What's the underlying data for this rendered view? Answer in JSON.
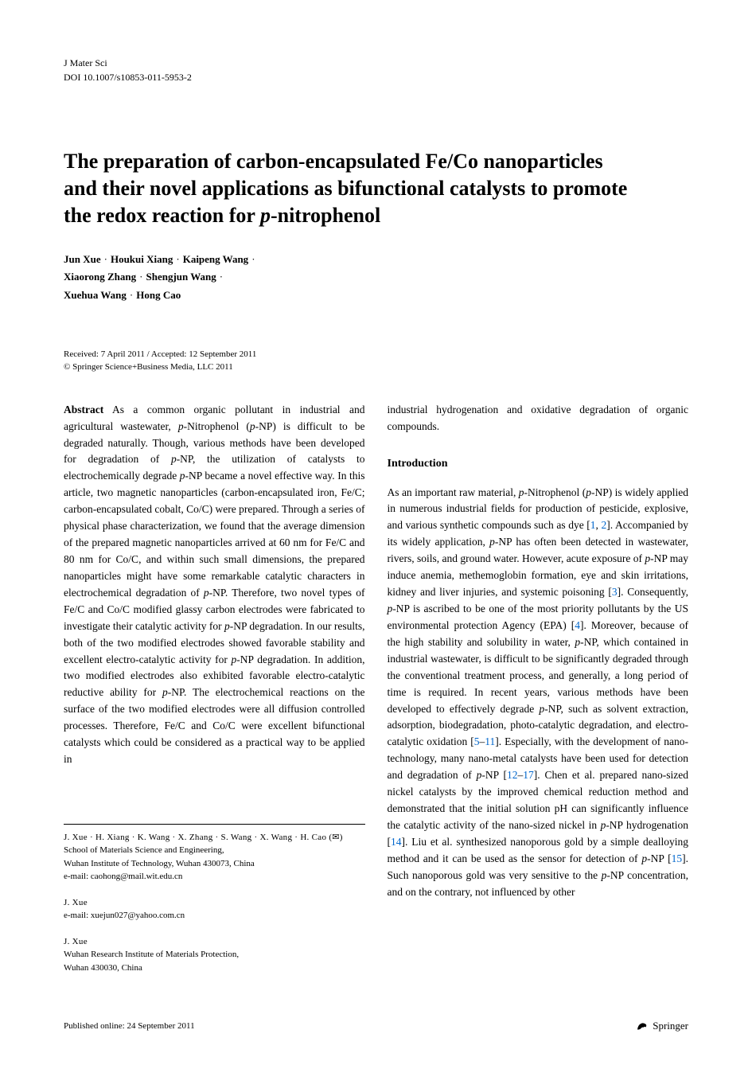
{
  "header": {
    "journal": "J Mater Sci",
    "doi": "DOI 10.1007/s10853-011-5953-2"
  },
  "title": {
    "line1": "The preparation of carbon-encapsulated Fe/Co nanoparticles",
    "line2": "and their novel applications as bifunctional catalysts to promote",
    "line3_pre": "the redox reaction for ",
    "line3_italic": "p",
    "line3_post": "-nitrophenol"
  },
  "authors": {
    "list": [
      "Jun Xue",
      "Houkui Xiang",
      "Kaipeng Wang",
      "Xiaorong Zhang",
      "Shengjun Wang",
      "Xuehua Wang",
      "Hong Cao"
    ],
    "separator": "·"
  },
  "dates": {
    "received_accepted": "Received: 7 April 2011 / Accepted: 12 September 2011",
    "copyright": "© Springer Science+Business Media, LLC 2011"
  },
  "abstract": {
    "label": "Abstract",
    "text_parts": [
      {
        "t": "   As a common organic pollutant in industrial and agricultural wastewater, "
      },
      {
        "i": "p"
      },
      {
        "t": "-Nitrophenol ("
      },
      {
        "i": "p"
      },
      {
        "t": "-NP) is difficult to be degraded naturally. Though, various methods have been developed for degradation of "
      },
      {
        "i": "p"
      },
      {
        "t": "-NP, the utilization of catalysts to electrochemically degrade "
      },
      {
        "i": "p"
      },
      {
        "t": "-NP became a novel effective way. In this article, two magnetic nanoparticles (carbon-encapsulated iron, Fe/C; carbon-encapsulated cobalt, Co/C) were prepared. Through a series of physical phase characterization, we found that the average dimension of the prepared magnetic nanoparticles arrived at 60 nm for Fe/C and 80 nm for Co/C, and within such small dimensions, the prepared nanoparticles might have some remarkable catalytic characters in electrochemical degradation of "
      },
      {
        "i": "p"
      },
      {
        "t": "-NP. Therefore, two novel types of Fe/C and Co/C modified glassy carbon electrodes were fabricated to investigate their catalytic activity for "
      },
      {
        "i": "p"
      },
      {
        "t": "-NP degradation. In our results, both of the two modified electrodes showed favorable stability and excellent electro-catalytic activity for "
      },
      {
        "i": "p"
      },
      {
        "t": "-NP degradation. In addition, two modified electrodes also exhibited favorable electro-catalytic reductive ability for "
      },
      {
        "i": "p"
      },
      {
        "t": "-NP. The electrochemical reactions on the surface of the two modified electrodes were all diffusion controlled processes. Therefore, Fe/C and Co/C were excellent bifunctional catalysts which could be considered as a practical way to be applied in"
      }
    ]
  },
  "col2_top": "industrial hydrogenation and oxidative degradation of organic compounds.",
  "intro": {
    "heading": "Introduction",
    "text_parts": [
      {
        "t": "As an important raw material, "
      },
      {
        "i": "p"
      },
      {
        "t": "-Nitrophenol ("
      },
      {
        "i": "p"
      },
      {
        "t": "-NP) is widely applied in numerous industrial fields for production of pesticide, explosive, and various synthetic compounds such as dye ["
      },
      {
        "r": "1"
      },
      {
        "t": ", "
      },
      {
        "r": "2"
      },
      {
        "t": "]. Accompanied by its widely application, "
      },
      {
        "i": "p"
      },
      {
        "t": "-NP has often been detected in wastewater, rivers, soils, and ground water. However, acute exposure of "
      },
      {
        "i": "p"
      },
      {
        "t": "-NP may induce anemia, methemoglobin formation, eye and skin irritations, kidney and liver injuries, and systemic poisoning ["
      },
      {
        "r": "3"
      },
      {
        "t": "]. Consequently, "
      },
      {
        "i": "p"
      },
      {
        "t": "-NP is ascribed to be one of the most priority pollutants by the US environmental protection Agency (EPA) ["
      },
      {
        "r": "4"
      },
      {
        "t": "]. Moreover, because of the high stability and solubility in water, "
      },
      {
        "i": "p"
      },
      {
        "t": "-NP, which contained in industrial wastewater, is difficult to be significantly degraded through the conventional treatment process, and generally, a long period of time is required. In recent years, various methods have been developed to effectively degrade "
      },
      {
        "i": "p"
      },
      {
        "t": "-NP, such as solvent extraction, adsorption, biodegradation, photo-catalytic degradation, and electro-catalytic oxidation ["
      },
      {
        "r": "5"
      },
      {
        "t": "–"
      },
      {
        "r": "11"
      },
      {
        "t": "]. Especially, with the development of nano-technology, many nano-metal catalysts have been used for detection and degradation of "
      },
      {
        "i": "p"
      },
      {
        "t": "-NP ["
      },
      {
        "r": "12"
      },
      {
        "t": "–"
      },
      {
        "r": "17"
      },
      {
        "t": "]. Chen et al. prepared nano-sized nickel catalysts by the improved chemical reduction method and demonstrated that the initial solution pH can significantly influence the catalytic activity of the nano-sized nickel in "
      },
      {
        "i": "p"
      },
      {
        "t": "-NP hydrogenation ["
      },
      {
        "r": "14"
      },
      {
        "t": "]. Liu et al. synthesized nanoporous gold by a simple dealloying method and it can be used as the sensor for detection of "
      },
      {
        "i": "p"
      },
      {
        "t": "-NP ["
      },
      {
        "r": "15"
      },
      {
        "t": "]. Such nanoporous gold was very sensitive to the "
      },
      {
        "i": "p"
      },
      {
        "t": "-NP concentration, and on the contrary, not influenced by other"
      }
    ]
  },
  "affiliations": {
    "block1": {
      "names": "J. Xue · H. Xiang · K. Wang · X. Zhang · S. Wang · X. Wang · H. Cao (✉)",
      "line1": "School of Materials Science and Engineering,",
      "line2": "Wuhan Institute of Technology, Wuhan 430073, China",
      "email": "e-mail: caohong@mail.wit.edu.cn"
    },
    "block2": {
      "names": "J. Xue",
      "email": "e-mail: xuejun027@yahoo.com.cn"
    },
    "block3": {
      "names": "J. Xue",
      "line1": "Wuhan Research Institute of Materials Protection,",
      "line2": "Wuhan 430030, China"
    }
  },
  "footer": {
    "published": "Published online: 24 September 2011",
    "publisher": "Springer"
  },
  "colors": {
    "text": "#000000",
    "link": "#0066cc",
    "background": "#ffffff"
  }
}
